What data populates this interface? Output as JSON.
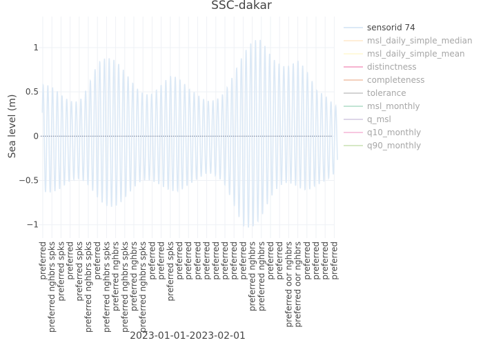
{
  "chart_data": {
    "type": "line",
    "title": "SSC-dakar",
    "xlabel": "2023-01-01-2023-02-01",
    "ylabel": "Sea level (m)",
    "ylim": [
      -1.15,
      1.35
    ],
    "yticks": [
      -1,
      -0.5,
      0,
      0.5,
      1
    ],
    "ytick_labels": [
      "−1",
      "−0.5",
      "0",
      "0.5",
      "1"
    ],
    "grid": true,
    "legend_position": "right",
    "x_categories": [
      "preferred",
      "preferred nghbrs spks",
      "preferred spks",
      "preferred",
      "preferred spks",
      "preferred nghbrs spks",
      "preferred",
      "preferred nghbrs spks",
      "preferred nghbrs",
      "preferred nghbrs spks",
      "preferred nghbrs",
      "preferred nghbrs spks",
      "preferred",
      "preferred",
      "preferred spks",
      "preferred",
      "preferred",
      "preferred",
      "preferred",
      "preferred",
      "preferred",
      "preferred",
      "preferred",
      "preferred nghbrs",
      "preferred nghbrs",
      "preferred",
      "preferred",
      "preferred oor nghbrs",
      "preferred oor nghbrs",
      "preferred",
      "preferred",
      "preferred",
      "preferred"
    ],
    "series": [
      {
        "name": "sensorid 74",
        "color": "#dce9f6",
        "visible": true,
        "envelope": {
          "x_index": [
            0,
            2,
            4,
            6,
            8,
            10,
            12,
            14,
            16,
            18,
            20,
            22,
            24,
            26,
            28,
            30,
            32
          ],
          "high": [
            0.58,
            0.6,
            0.64,
            0.93,
            0.86,
            0.8,
            0.72,
            0.72,
            0.57,
            0.6,
            0.7,
            0.93,
            1.23,
            1.2,
            1.03,
            0.52,
            0.45
          ],
          "low": [
            -0.62,
            -0.72,
            -0.73,
            -0.8,
            -0.8,
            -0.8,
            -0.75,
            -0.65,
            -0.58,
            -0.62,
            -0.75,
            -1.03,
            -1.05,
            -0.95,
            -0.75,
            -0.55,
            -0.52
          ]
        },
        "cycles_per_category": 1.93
      },
      {
        "name": "msl_daily_simple_median",
        "color": "#ffe1b8",
        "visible": false
      },
      {
        "name": "msl_daily_simple_mean",
        "color": "#fff5c0",
        "visible": false
      },
      {
        "name": "distinctness",
        "color": "#f075a8",
        "visible": false
      },
      {
        "name": "completeness",
        "color": "#eba886",
        "visible": false
      },
      {
        "name": "tolerance",
        "color": "#b0b0b0",
        "visible": false
      },
      {
        "name": "msl_monthly",
        "color": "#8fcfb2",
        "visible": false,
        "values_constant": 0
      },
      {
        "name": "q_msl",
        "color": "#c3b4d6",
        "visible": false
      },
      {
        "name": "q10_monthly",
        "color": "#f29ac8",
        "visible": false
      },
      {
        "name": "q90_monthly",
        "color": "#b6d697",
        "visible": false
      }
    ]
  }
}
